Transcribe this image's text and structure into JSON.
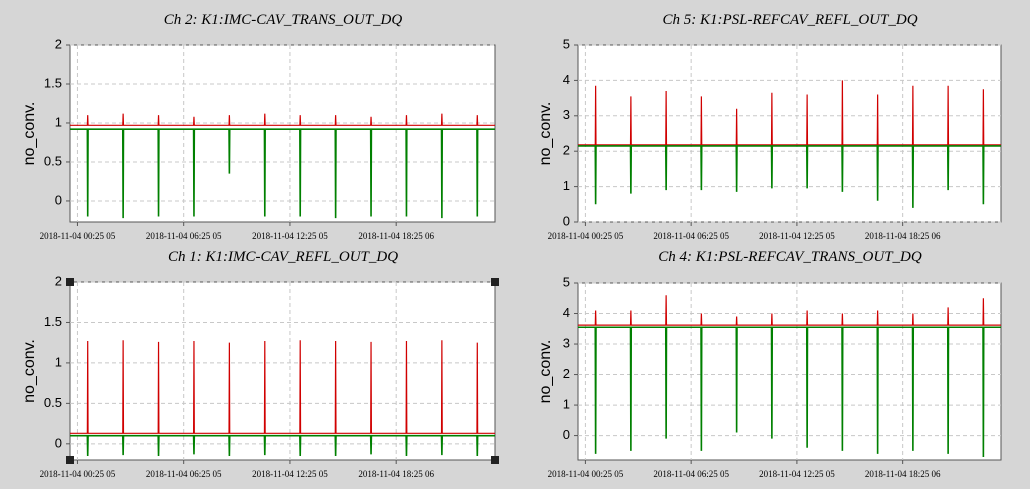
{
  "chart_data": [
    {
      "type": "line",
      "title": "Ch 2: K1:IMC-CAV_TRANS_OUT_DQ",
      "y_label": "no_conv.",
      "x": [
        0,
        0.98,
        1,
        1.02,
        2.98,
        3,
        3.02,
        4.98,
        5,
        5.02,
        6.98,
        7,
        7.02,
        8.98,
        9,
        9.02,
        10.98,
        11,
        11.02,
        12.98,
        13,
        13.02,
        14.98,
        15,
        15.02,
        16.98,
        17,
        17.02,
        18.98,
        19,
        19.02,
        20.98,
        21,
        21.02,
        22.98,
        23,
        23.02,
        24
      ],
      "xlim": [
        0,
        24
      ],
      "xticks": [
        {
          "value": 0.42,
          "label": "2018-11-04 00:25 05"
        },
        {
          "value": 6.42,
          "label": "2018-11-04 06:25 05"
        },
        {
          "value": 12.42,
          "label": "2018-11-04 12:25 05"
        },
        {
          "value": 18.42,
          "label": "2018-11-04 18:25 06"
        }
      ],
      "ylim": [
        -0.27,
        2
      ],
      "yticks": [
        0,
        0.5,
        1,
        1.5,
        2
      ],
      "grid": true,
      "series": [
        {
          "color": "#d00000",
          "values": [
            0.97,
            0.97,
            1.1,
            0.97,
            0.97,
            1.12,
            0.97,
            0.97,
            1.1,
            0.97,
            0.97,
            1.08,
            0.97,
            0.97,
            1.1,
            0.97,
            0.97,
            1.12,
            0.97,
            0.97,
            1.1,
            0.97,
            0.97,
            1.1,
            0.97,
            0.97,
            1.08,
            0.97,
            0.97,
            1.1,
            0.97,
            0.97,
            1.12,
            0.97,
            0.97,
            1.1,
            0.97,
            0.97
          ]
        },
        {
          "color": "#008000",
          "values": [
            0.92,
            0.92,
            -0.2,
            0.92,
            0.92,
            -0.22,
            0.92,
            0.92,
            -0.2,
            0.92,
            0.92,
            -0.2,
            0.92,
            0.92,
            0.35,
            0.92,
            0.92,
            -0.2,
            0.92,
            0.92,
            -0.2,
            0.92,
            0.92,
            -0.22,
            0.92,
            0.92,
            -0.2,
            0.92,
            0.92,
            -0.2,
            0.92,
            0.92,
            -0.22,
            0.92,
            0.92,
            -0.2,
            0.92,
            0.92
          ]
        }
      ]
    },
    {
      "type": "line",
      "title": "Ch 5: K1:PSL-REFCAV_REFL_OUT_DQ",
      "y_label": "no_conv.",
      "x": [
        0,
        0.98,
        1,
        1.02,
        2.98,
        3,
        3.02,
        4.98,
        5,
        5.02,
        6.98,
        7,
        7.02,
        8.98,
        9,
        9.02,
        10.98,
        11,
        11.02,
        12.98,
        13,
        13.02,
        14.98,
        15,
        15.02,
        16.98,
        17,
        17.02,
        18.98,
        19,
        19.02,
        20.98,
        21,
        21.02,
        22.98,
        23,
        23.02,
        24
      ],
      "xlim": [
        0,
        24
      ],
      "xticks": [
        {
          "value": 0.42,
          "label": "2018-11-04 00:25 05"
        },
        {
          "value": 6.42,
          "label": "2018-11-04 06:25 05"
        },
        {
          "value": 12.42,
          "label": "2018-11-04 12:25 05"
        },
        {
          "value": 18.42,
          "label": "2018-11-04 18:25 06"
        }
      ],
      "ylim": [
        0,
        5
      ],
      "yticks": [
        0,
        1,
        2,
        3,
        4,
        5
      ],
      "grid": true,
      "series": [
        {
          "color": "#d00000",
          "values": [
            2.18,
            2.18,
            3.85,
            2.18,
            2.18,
            3.55,
            2.18,
            2.18,
            3.7,
            2.18,
            2.18,
            3.55,
            2.18,
            2.18,
            3.2,
            2.18,
            2.18,
            3.65,
            2.18,
            2.18,
            3.6,
            2.18,
            2.18,
            4.0,
            2.18,
            2.18,
            3.6,
            2.18,
            2.18,
            3.85,
            2.18,
            2.18,
            3.85,
            2.18,
            2.18,
            3.75,
            2.18,
            2.18
          ]
        },
        {
          "color": "#008000",
          "values": [
            2.15,
            2.15,
            0.5,
            2.15,
            2.15,
            0.8,
            2.15,
            2.15,
            0.9,
            2.15,
            2.15,
            0.9,
            2.15,
            2.15,
            0.85,
            2.15,
            2.15,
            0.95,
            2.15,
            2.15,
            0.95,
            2.15,
            2.15,
            0.85,
            2.15,
            2.15,
            0.6,
            2.15,
            2.15,
            0.4,
            2.15,
            2.15,
            0.9,
            2.15,
            2.15,
            0.5,
            2.15,
            2.15
          ]
        }
      ]
    },
    {
      "type": "line",
      "title": "Ch 1: K1:IMC-CAV_REFL_OUT_DQ",
      "y_label": "no_conv.",
      "x": [
        0,
        0.98,
        1,
        1.02,
        2.98,
        3,
        3.02,
        4.98,
        5,
        5.02,
        6.98,
        7,
        7.02,
        8.98,
        9,
        9.02,
        10.98,
        11,
        11.02,
        12.98,
        13,
        13.02,
        14.98,
        15,
        15.02,
        16.98,
        17,
        17.02,
        18.98,
        19,
        19.02,
        20.98,
        21,
        21.02,
        22.98,
        23,
        23.02,
        24
      ],
      "xlim": [
        0,
        24
      ],
      "xticks": [
        {
          "value": 0.42,
          "label": "2018-11-04 00:25 05"
        },
        {
          "value": 6.42,
          "label": "2018-11-04 06:25 05"
        },
        {
          "value": 12.42,
          "label": "2018-11-04 12:25 05"
        },
        {
          "value": 18.42,
          "label": "2018-11-04 18:25 06"
        }
      ],
      "ylim": [
        -0.2,
        2
      ],
      "yticks": [
        0,
        0.5,
        1,
        1.5,
        2
      ],
      "grid": true,
      "series": [
        {
          "color": "#d00000",
          "values": [
            0.13,
            0.13,
            1.27,
            0.13,
            0.13,
            1.28,
            0.13,
            0.13,
            1.26,
            0.13,
            0.13,
            1.27,
            0.13,
            0.13,
            1.25,
            0.13,
            0.13,
            1.27,
            0.13,
            0.13,
            1.28,
            0.13,
            0.13,
            1.27,
            0.13,
            0.13,
            1.26,
            0.13,
            0.13,
            1.27,
            0.13,
            0.13,
            1.28,
            0.13,
            0.13,
            1.25,
            0.13,
            0.13
          ]
        },
        {
          "color": "#008000",
          "values": [
            0.1,
            0.1,
            -0.15,
            0.1,
            0.1,
            -0.14,
            0.1,
            0.1,
            -0.15,
            0.1,
            0.1,
            -0.13,
            0.1,
            0.1,
            -0.15,
            0.1,
            0.1,
            -0.14,
            0.1,
            0.1,
            -0.15,
            0.1,
            0.1,
            -0.15,
            0.1,
            0.1,
            -0.13,
            0.1,
            0.1,
            -0.15,
            0.1,
            0.1,
            -0.14,
            0.1,
            0.1,
            -0.15,
            0.1,
            0.1
          ]
        }
      ]
    },
    {
      "type": "line",
      "title": "Ch 4: K1:PSL-REFCAV_TRANS_OUT_DQ",
      "y_label": "no_conv.",
      "x": [
        0,
        0.98,
        1,
        1.02,
        2.98,
        3,
        3.02,
        4.98,
        5,
        5.02,
        6.98,
        7,
        7.02,
        8.98,
        9,
        9.02,
        10.98,
        11,
        11.02,
        12.98,
        13,
        13.02,
        14.98,
        15,
        15.02,
        16.98,
        17,
        17.02,
        18.98,
        19,
        19.02,
        20.98,
        21,
        21.02,
        22.98,
        23,
        23.02,
        24
      ],
      "xlim": [
        0,
        24
      ],
      "xticks": [
        {
          "value": 0.42,
          "label": "2018-11-04 00:25 05"
        },
        {
          "value": 6.42,
          "label": "2018-11-04 06:25 05"
        },
        {
          "value": 12.42,
          "label": "2018-11-04 12:25 05"
        },
        {
          "value": 18.42,
          "label": "2018-11-04 18:25 06"
        }
      ],
      "ylim": [
        -0.8,
        5
      ],
      "yticks": [
        0,
        1,
        2,
        3,
        4,
        5
      ],
      "grid": true,
      "series": [
        {
          "color": "#d00000",
          "values": [
            3.62,
            3.62,
            4.1,
            3.62,
            3.62,
            4.1,
            3.62,
            3.62,
            4.6,
            3.62,
            3.62,
            4.0,
            3.62,
            3.62,
            3.9,
            3.62,
            3.62,
            4.0,
            3.62,
            3.62,
            4.1,
            3.62,
            3.62,
            4.0,
            3.62,
            3.62,
            4.1,
            3.62,
            3.62,
            4.0,
            3.62,
            3.62,
            4.2,
            3.62,
            3.62,
            4.5,
            3.62,
            3.62
          ]
        },
        {
          "color": "#008000",
          "values": [
            3.55,
            3.55,
            -0.6,
            3.55,
            3.55,
            -0.5,
            3.55,
            3.55,
            -0.1,
            3.55,
            3.55,
            -0.5,
            3.55,
            3.55,
            0.1,
            3.55,
            3.55,
            -0.1,
            3.55,
            3.55,
            -0.4,
            3.55,
            3.55,
            -0.5,
            3.55,
            3.55,
            -0.6,
            3.55,
            3.55,
            -0.5,
            3.55,
            3.55,
            -0.6,
            3.55,
            3.55,
            -0.7,
            3.55,
            3.55
          ]
        }
      ]
    }
  ]
}
